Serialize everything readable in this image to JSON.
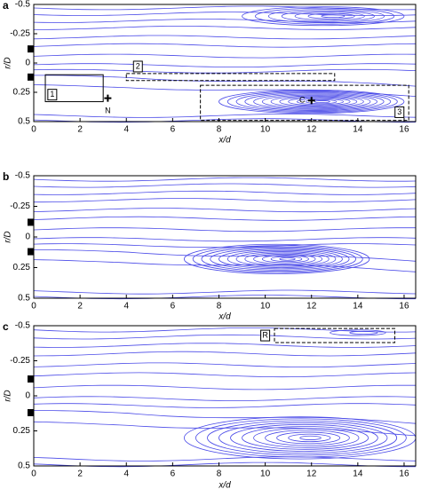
{
  "chart_data": [
    {
      "type": "streamline",
      "title": "a",
      "xlabel": "x/d",
      "ylabel": "r/D",
      "xlim": [
        0,
        16.5
      ],
      "ylim": [
        0.5,
        -0.5
      ],
      "xticks": [
        0,
        2,
        4,
        6,
        8,
        10,
        12,
        14,
        16
      ],
      "yticks": [
        -0.5,
        -0.25,
        0,
        0.25,
        0.5
      ],
      "annotations": [
        "1",
        "2",
        "3",
        "N",
        "C"
      ]
    },
    {
      "type": "streamline",
      "title": "b",
      "xlabel": "x/d",
      "ylabel": "r/D",
      "xlim": [
        0,
        16.5
      ],
      "ylim": [
        0.5,
        -0.5
      ],
      "xticks": [
        0,
        2,
        4,
        6,
        8,
        10,
        12,
        14,
        16
      ],
      "yticks": [
        -0.5,
        -0.25,
        0,
        0.25,
        0.5
      ],
      "annotations": []
    },
    {
      "type": "streamline",
      "title": "c",
      "xlabel": "x/d",
      "ylabel": "r/D",
      "xlim": [
        0,
        16.5
      ],
      "ylim": [
        0.5,
        -0.5
      ],
      "xticks": [
        0,
        2,
        4,
        6,
        8,
        10,
        12,
        14,
        16
      ],
      "yticks": [
        -0.5,
        -0.25,
        0,
        0.25,
        0.5
      ],
      "annotations": [
        "R"
      ]
    }
  ]
}
